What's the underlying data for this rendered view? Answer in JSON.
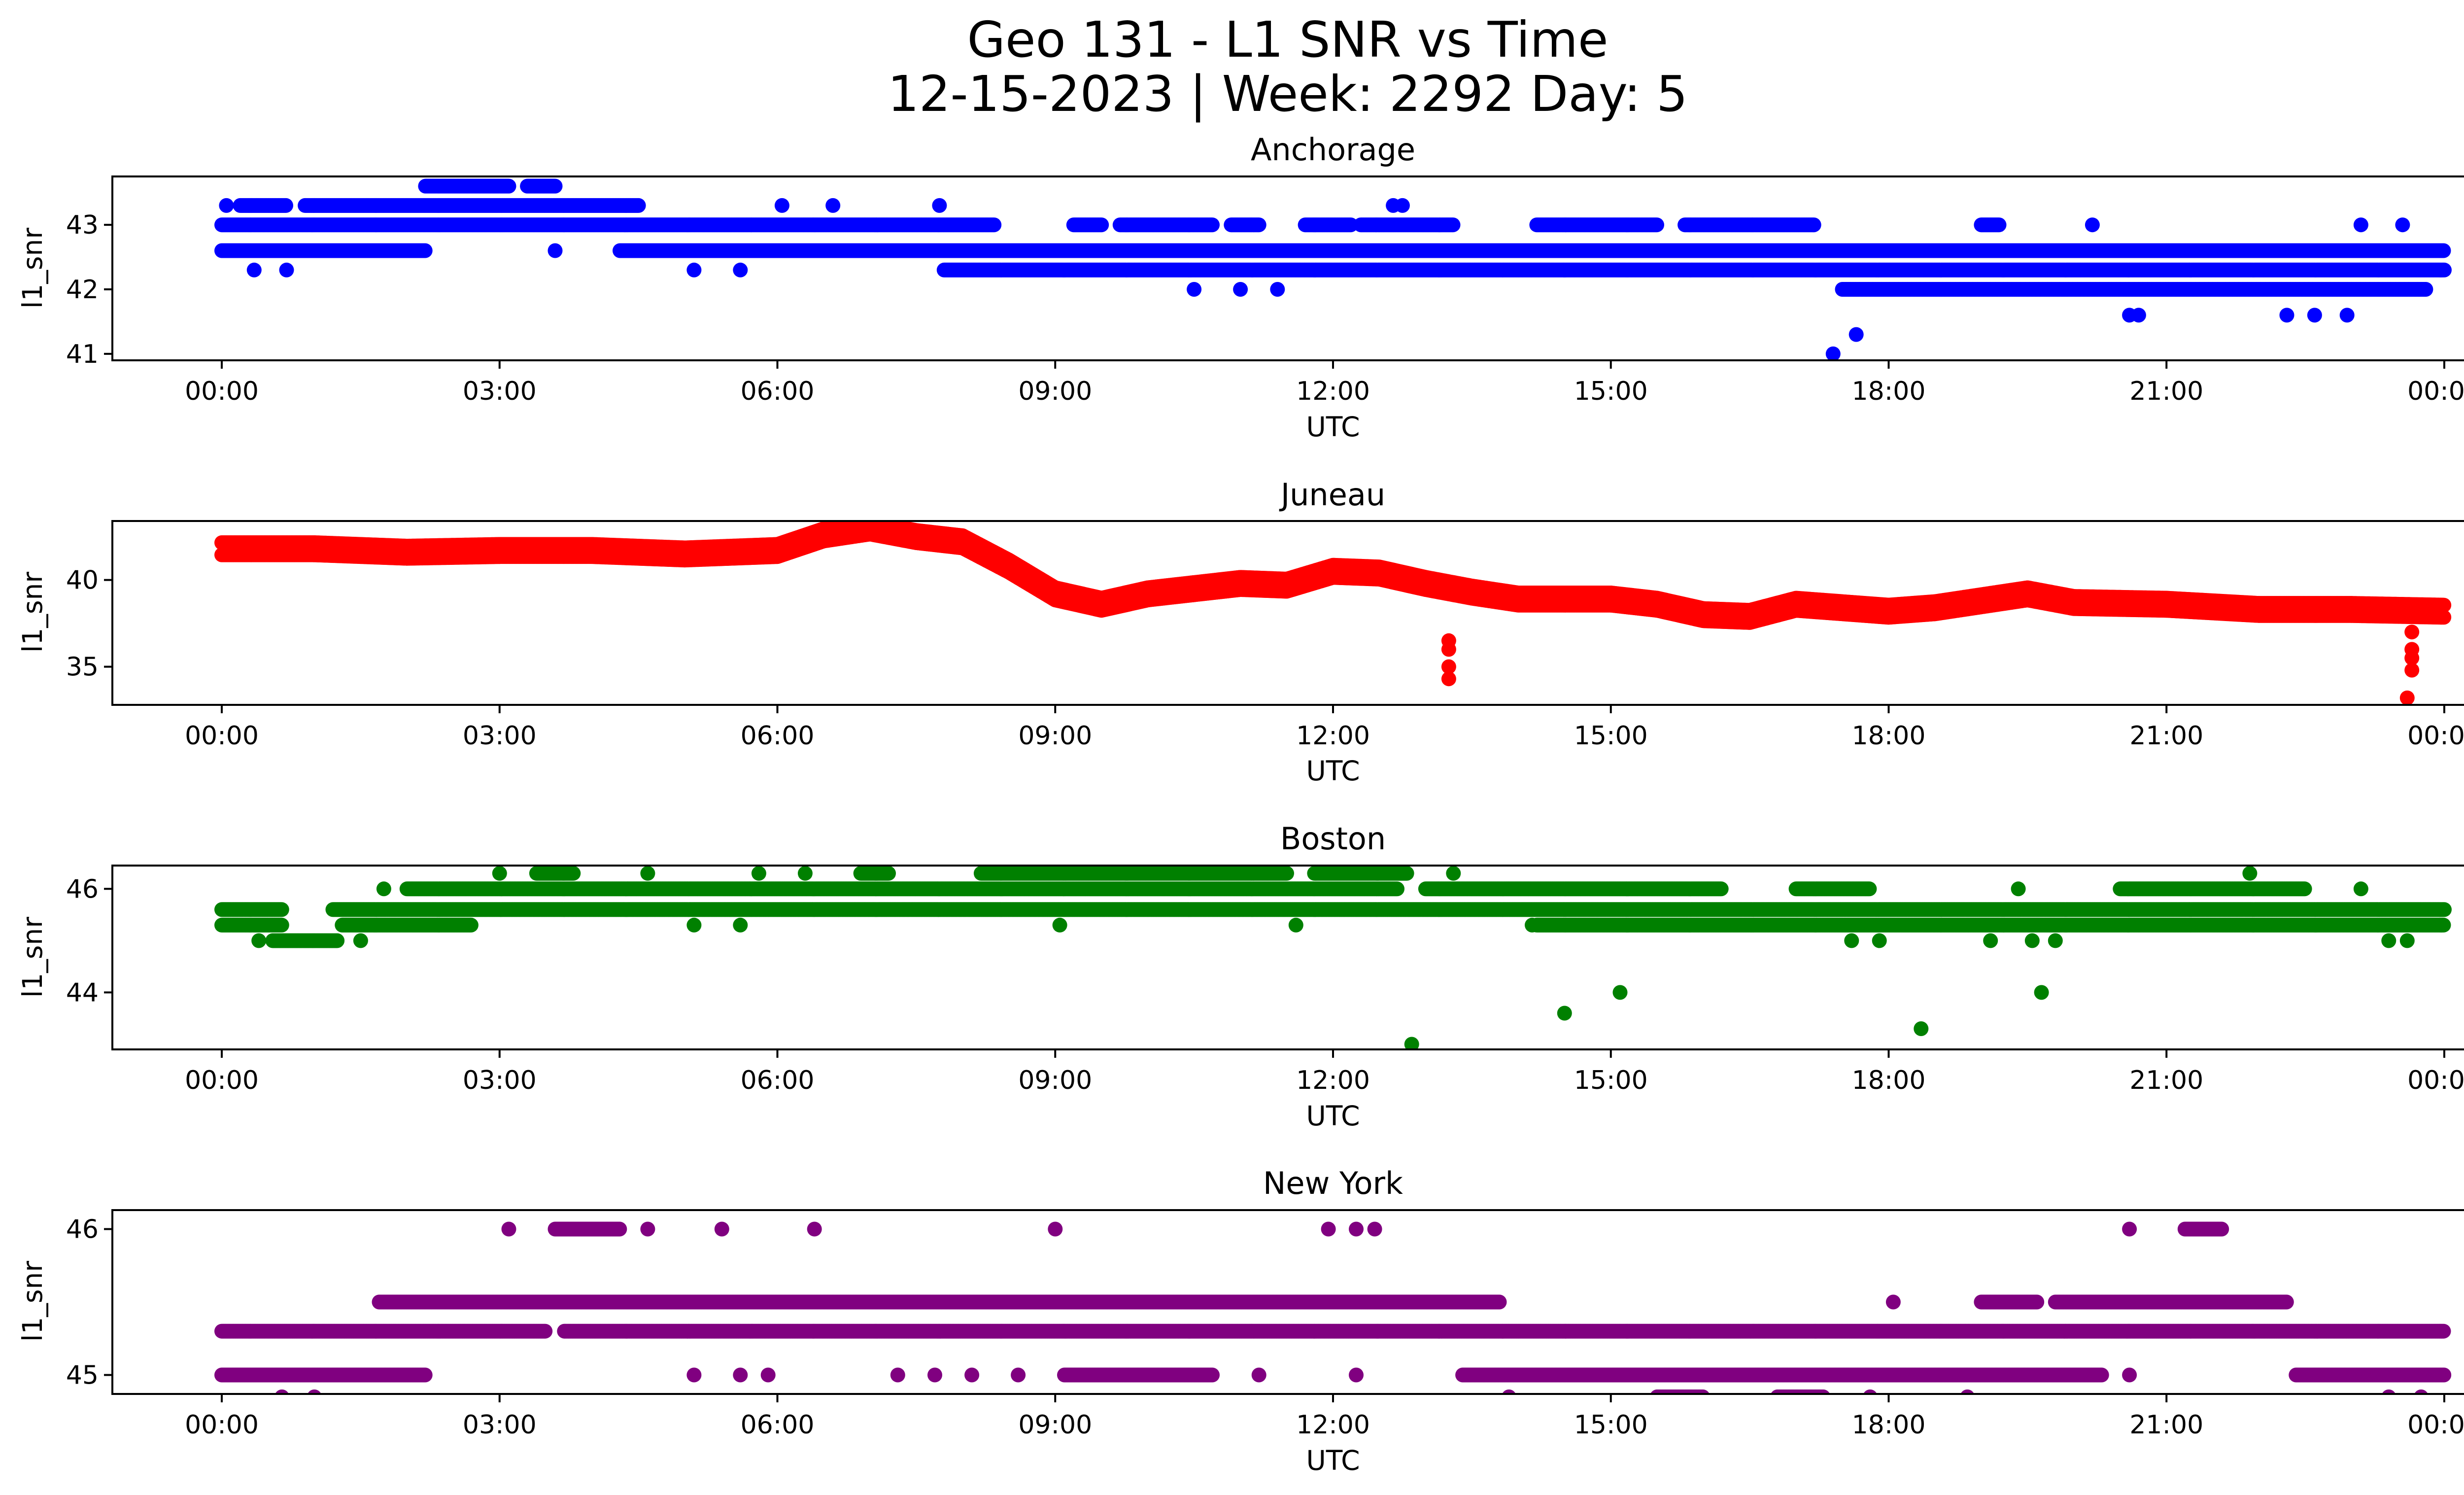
{
  "figure": {
    "title_line1": "Geo 131 - L1 SNR vs Time",
    "title_line2": "12-15-2023 | Week: 2292 Day: 5"
  },
  "chart_data": [
    {
      "type": "scatter",
      "title": "Anchorage",
      "xlabel": "UTC",
      "ylabel": "l1_snr",
      "color": "#0000ff",
      "xlim": [
        0,
        24
      ],
      "ylim": [
        40.9,
        43.75
      ],
      "x_ticks": [
        "00:00",
        "03:00",
        "06:00",
        "09:00",
        "12:00",
        "15:00",
        "18:00",
        "21:00",
        "00:00"
      ],
      "y_ticks": [
        41,
        42,
        43
      ],
      "bands": [
        {
          "y": 43.0,
          "ranges": [
            [
              0.0,
              8.35
            ],
            [
              9.2,
              9.5
            ],
            [
              9.7,
              10.7
            ],
            [
              10.9,
              11.2
            ],
            [
              11.7,
              12.2
            ],
            [
              12.3,
              13.3
            ],
            [
              14.2,
              15.5
            ],
            [
              15.8,
              17.2
            ],
            [
              19.0,
              19.2
            ]
          ]
        },
        {
          "y": 42.6,
          "ranges": [
            [
              0.0,
              2.2
            ],
            [
              4.3,
              24.0
            ]
          ]
        },
        {
          "y": 42.3,
          "ranges": [
            [
              7.8,
              24.0
            ]
          ]
        },
        {
          "y": 43.3,
          "ranges": [
            [
              0.2,
              0.7
            ],
            [
              0.9,
              4.5
            ]
          ]
        },
        {
          "y": 43.6,
          "ranges": [
            [
              2.2,
              3.1
            ],
            [
              3.3,
              3.6
            ]
          ]
        },
        {
          "y": 42.0,
          "ranges": [
            [
              17.5,
              23.8
            ]
          ]
        }
      ],
      "points": [
        {
          "x": 0.05,
          "y": 43.3
        },
        {
          "x": 0.35,
          "y": 42.3
        },
        {
          "x": 0.7,
          "y": 42.3
        },
        {
          "x": 3.6,
          "y": 42.6
        },
        {
          "x": 5.1,
          "y": 42.3
        },
        {
          "x": 5.6,
          "y": 42.3
        },
        {
          "x": 6.05,
          "y": 43.3
        },
        {
          "x": 6.6,
          "y": 43.3
        },
        {
          "x": 7.75,
          "y": 43.3
        },
        {
          "x": 10.5,
          "y": 42.0
        },
        {
          "x": 11.0,
          "y": 42.0
        },
        {
          "x": 11.4,
          "y": 42.0
        },
        {
          "x": 12.65,
          "y": 43.3
        },
        {
          "x": 12.75,
          "y": 43.3
        },
        {
          "x": 17.4,
          "y": 41.0
        },
        {
          "x": 17.65,
          "y": 41.3
        },
        {
          "x": 20.2,
          "y": 43.0
        },
        {
          "x": 20.6,
          "y": 41.6
        },
        {
          "x": 20.7,
          "y": 41.6
        },
        {
          "x": 22.3,
          "y": 41.6
        },
        {
          "x": 22.6,
          "y": 41.6
        },
        {
          "x": 22.95,
          "y": 41.6
        },
        {
          "x": 23.1,
          "y": 43.0
        },
        {
          "x": 23.55,
          "y": 43.0
        }
      ]
    },
    {
      "type": "scatter",
      "title": "Juneau",
      "xlabel": "UTC",
      "ylabel": "l1_snr",
      "color": "#ff0000",
      "xlim": [
        0,
        24
      ],
      "ylim": [
        32.8,
        43.4
      ],
      "x_ticks": [
        "00:00",
        "03:00",
        "06:00",
        "09:00",
        "12:00",
        "15:00",
        "18:00",
        "21:00",
        "00:00"
      ],
      "y_ticks": [
        35,
        40
      ],
      "trend": [
        [
          0.0,
          41.8
        ],
        [
          1.0,
          41.8
        ],
        [
          2.0,
          41.6
        ],
        [
          3.0,
          41.7
        ],
        [
          4.0,
          41.7
        ],
        [
          5.0,
          41.5
        ],
        [
          6.0,
          41.7
        ],
        [
          6.5,
          42.6
        ],
        [
          7.0,
          43.0
        ],
        [
          7.5,
          42.5
        ],
        [
          8.0,
          42.2
        ],
        [
          8.5,
          40.8
        ],
        [
          9.0,
          39.2
        ],
        [
          9.5,
          38.6
        ],
        [
          10.0,
          39.2
        ],
        [
          10.5,
          39.5
        ],
        [
          11.0,
          39.8
        ],
        [
          11.5,
          39.7
        ],
        [
          12.0,
          40.5
        ],
        [
          12.5,
          40.4
        ],
        [
          13.0,
          39.8
        ],
        [
          13.5,
          39.3
        ],
        [
          14.0,
          38.9
        ],
        [
          15.0,
          38.9
        ],
        [
          15.5,
          38.6
        ],
        [
          16.0,
          38.0
        ],
        [
          16.5,
          37.9
        ],
        [
          17.0,
          38.6
        ],
        [
          18.0,
          38.2
        ],
        [
          18.5,
          38.4
        ],
        [
          19.0,
          38.8
        ],
        [
          19.5,
          39.2
        ],
        [
          20.0,
          38.7
        ],
        [
          21.0,
          38.6
        ],
        [
          22.0,
          38.3
        ],
        [
          23.0,
          38.3
        ],
        [
          24.0,
          38.2
        ]
      ],
      "points": [
        {
          "x": 13.25,
          "y": 36.5
        },
        {
          "x": 13.25,
          "y": 36.0
        },
        {
          "x": 13.25,
          "y": 35.0
        },
        {
          "x": 13.25,
          "y": 34.3
        },
        {
          "x": 23.65,
          "y": 37.0
        },
        {
          "x": 23.65,
          "y": 36.0
        },
        {
          "x": 23.65,
          "y": 35.5
        },
        {
          "x": 23.65,
          "y": 34.8
        },
        {
          "x": 23.6,
          "y": 33.2
        }
      ]
    },
    {
      "type": "scatter",
      "title": "Boston",
      "xlabel": "UTC",
      "ylabel": "l1_snr",
      "color": "#008000",
      "xlim": [
        0,
        24
      ],
      "ylim": [
        42.9,
        46.45
      ],
      "x_ticks": [
        "00:00",
        "03:00",
        "06:00",
        "09:00",
        "12:00",
        "15:00",
        "18:00",
        "21:00",
        "00:00"
      ],
      "y_ticks": [
        44,
        46
      ],
      "bands": [
        {
          "y": 45.6,
          "ranges": [
            [
              0.0,
              0.65
            ],
            [
              1.2,
              24.0
            ]
          ]
        },
        {
          "y": 45.3,
          "ranges": [
            [
              0.0,
              0.65
            ],
            [
              1.3,
              2.7
            ],
            [
              14.2,
              24.0
            ]
          ]
        },
        {
          "y": 46.0,
          "ranges": [
            [
              2.0,
              12.7
            ],
            [
              13.0,
              16.2
            ],
            [
              17.0,
              17.8
            ],
            [
              20.5,
              22.5
            ]
          ]
        },
        {
          "y": 45.0,
          "ranges": [
            [
              0.55,
              1.25
            ]
          ]
        },
        {
          "y": 46.3,
          "ranges": [
            [
              3.4,
              3.8
            ],
            [
              6.9,
              7.2
            ],
            [
              8.2,
              11.5
            ],
            [
              11.8,
              12.8
            ]
          ]
        }
      ],
      "points": [
        {
          "x": 0.4,
          "y": 45.0
        },
        {
          "x": 1.5,
          "y": 45.0
        },
        {
          "x": 1.75,
          "y": 46.0
        },
        {
          "x": 3.0,
          "y": 46.3
        },
        {
          "x": 4.6,
          "y": 46.3
        },
        {
          "x": 5.1,
          "y": 45.3
        },
        {
          "x": 5.6,
          "y": 45.3
        },
        {
          "x": 5.8,
          "y": 46.3
        },
        {
          "x": 6.3,
          "y": 46.3
        },
        {
          "x": 9.05,
          "y": 45.3
        },
        {
          "x": 11.6,
          "y": 45.3
        },
        {
          "x": 13.3,
          "y": 46.3
        },
        {
          "x": 14.15,
          "y": 45.3
        },
        {
          "x": 17.6,
          "y": 45.0
        },
        {
          "x": 17.9,
          "y": 45.0
        },
        {
          "x": 19.1,
          "y": 45.0
        },
        {
          "x": 19.4,
          "y": 46.0
        },
        {
          "x": 19.55,
          "y": 45.0
        },
        {
          "x": 19.8,
          "y": 45.0
        },
        {
          "x": 21.9,
          "y": 46.3
        },
        {
          "x": 23.1,
          "y": 46.0
        },
        {
          "x": 23.4,
          "y": 45.0
        },
        {
          "x": 23.6,
          "y": 45.0
        },
        {
          "x": 12.85,
          "y": 43.0
        },
        {
          "x": 14.5,
          "y": 43.6
        },
        {
          "x": 15.1,
          "y": 44.0
        },
        {
          "x": 18.35,
          "y": 43.3
        },
        {
          "x": 19.65,
          "y": 44.0
        }
      ]
    },
    {
      "type": "scatter",
      "title": "New York",
      "xlabel": "UTC",
      "ylabel": "l1_snr",
      "color": "#800080",
      "xlim": [
        0,
        24
      ],
      "ylim": [
        44.87,
        46.13
      ],
      "x_ticks": [
        "00:00",
        "03:00",
        "06:00",
        "09:00",
        "12:00",
        "15:00",
        "18:00",
        "21:00",
        "00:00"
      ],
      "y_ticks": [
        45,
        46
      ],
      "bands": [
        {
          "y": 45.3,
          "ranges": [
            [
              0.0,
              3.5
            ],
            [
              3.7,
              24.0
            ]
          ]
        },
        {
          "y": 45.5,
          "ranges": [
            [
              1.7,
              13.8
            ],
            [
              19.0,
              19.6
            ],
            [
              19.8,
              22.3
            ]
          ]
        },
        {
          "y": 45.0,
          "ranges": [
            [
              0.0,
              2.2
            ],
            [
              9.1,
              10.7
            ],
            [
              13.4,
              20.3
            ],
            [
              22.4,
              24.0
            ]
          ]
        },
        {
          "y": 46.0,
          "ranges": [
            [
              3.6,
              4.3
            ],
            [
              21.2,
              21.6
            ]
          ]
        },
        {
          "y": 44.85,
          "ranges": [
            [
              15.5,
              16.0
            ],
            [
              16.8,
              17.3
            ]
          ]
        }
      ],
      "points": [
        {
          "x": 0.65,
          "y": 44.85
        },
        {
          "x": 1.0,
          "y": 44.85
        },
        {
          "x": 3.1,
          "y": 46.0
        },
        {
          "x": 4.6,
          "y": 46.0
        },
        {
          "x": 5.4,
          "y": 46.0
        },
        {
          "x": 6.4,
          "y": 46.0
        },
        {
          "x": 9.0,
          "y": 46.0
        },
        {
          "x": 11.95,
          "y": 46.0
        },
        {
          "x": 12.25,
          "y": 46.0
        },
        {
          "x": 12.45,
          "y": 46.0
        },
        {
          "x": 20.6,
          "y": 46.0
        },
        {
          "x": 5.1,
          "y": 45.0
        },
        {
          "x": 5.6,
          "y": 45.0
        },
        {
          "x": 5.9,
          "y": 45.0
        },
        {
          "x": 7.3,
          "y": 45.0
        },
        {
          "x": 7.7,
          "y": 45.0
        },
        {
          "x": 8.1,
          "y": 45.0
        },
        {
          "x": 8.6,
          "y": 45.0
        },
        {
          "x": 11.2,
          "y": 45.0
        },
        {
          "x": 12.25,
          "y": 45.0
        },
        {
          "x": 13.9,
          "y": 44.85
        },
        {
          "x": 17.8,
          "y": 44.85
        },
        {
          "x": 18.85,
          "y": 44.85
        },
        {
          "x": 23.4,
          "y": 44.85
        },
        {
          "x": 23.75,
          "y": 44.85
        },
        {
          "x": 18.05,
          "y": 45.5
        },
        {
          "x": 20.6,
          "y": 45.0
        }
      ]
    }
  ]
}
